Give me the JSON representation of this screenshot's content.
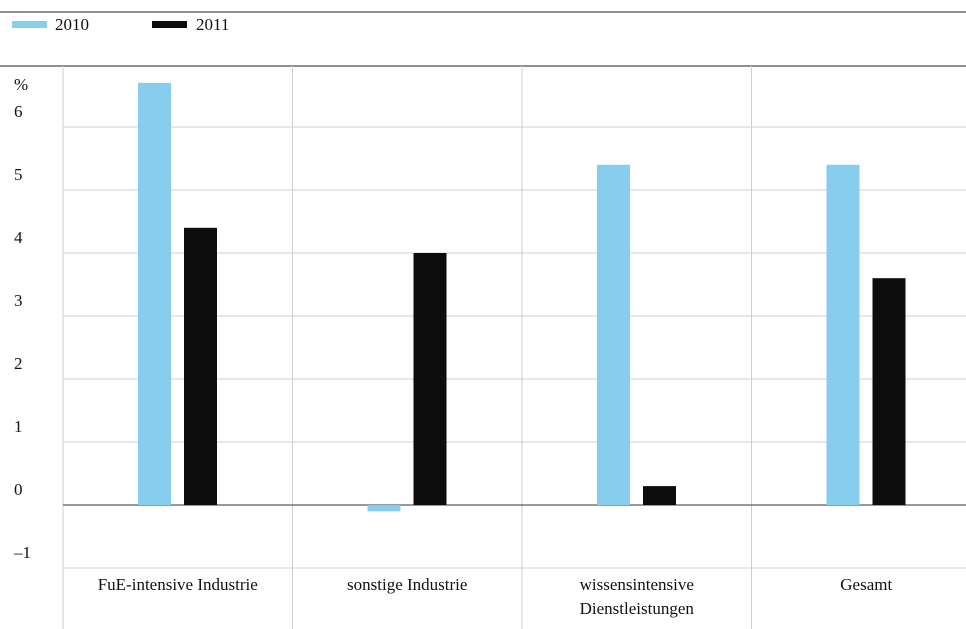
{
  "chart_data": {
    "type": "bar",
    "title": "",
    "xlabel": "",
    "ylabel": "%",
    "ylim": [
      -1.5,
      7
    ],
    "yticks": [
      -1,
      0,
      1,
      2,
      3,
      4,
      5,
      6
    ],
    "ytick_labels": [
      "–1",
      "0",
      "1",
      "2",
      "3",
      "4",
      "5",
      "6"
    ],
    "categories": [
      [
        "FuE-intensive Industrie"
      ],
      [
        "sonstige Industrie"
      ],
      [
        "wissensintensive",
        "Dienstleistungen"
      ],
      [
        "Gesamt"
      ]
    ],
    "series": [
      {
        "name": "2010",
        "color": "#87ceee",
        "values": [
          6.7,
          -0.1,
          5.4,
          5.4
        ]
      },
      {
        "name": "2011",
        "color": "#0d0d0d",
        "values": [
          4.4,
          4.0,
          0.3,
          3.6
        ]
      }
    ],
    "grid": true,
    "legend_position": "top-left"
  }
}
